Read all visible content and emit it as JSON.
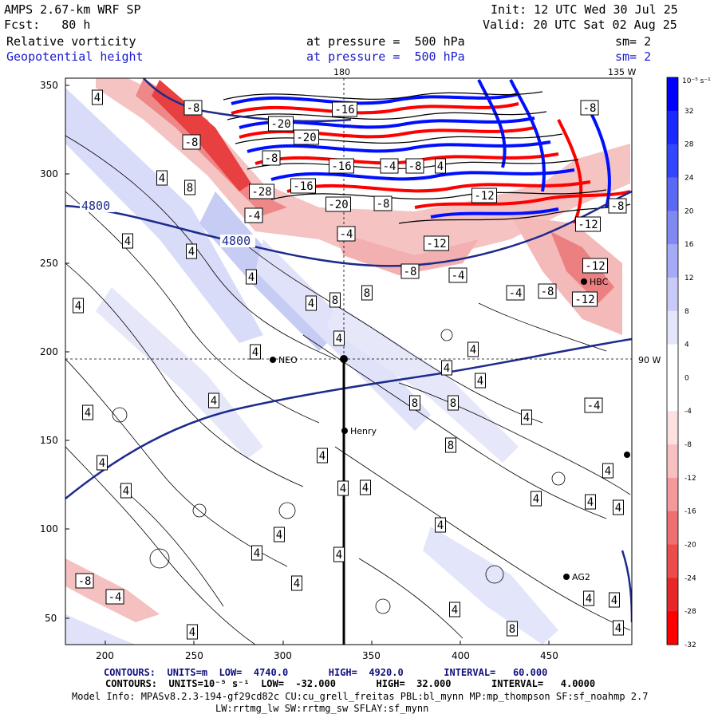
{
  "header": {
    "model": "AMPS 2.67-km WRF SP",
    "init": "Init: 12 UTC Wed 30 Jul 25",
    "fcst": "Fcst:   80 h",
    "valid": "Valid: 20 UTC Sat 02 Aug 25",
    "field1": "Relative vorticity",
    "field1_level": "at pressure =  500 hPa",
    "field1_sm": "sm= 2",
    "field2": "Geopotential height",
    "field2_level": "at pressure =  500 hPa",
    "field2_sm": "sm= 2"
  },
  "map": {
    "meridian_labels": {
      "top_180": "180",
      "top_135w": "135 W",
      "right_90w": "90 W"
    },
    "x_ticks": [
      "200",
      "250",
      "300",
      "350",
      "400",
      "450"
    ],
    "y_ticks": [
      "50",
      "100",
      "150",
      "200",
      "250",
      "300",
      "350"
    ],
    "stations": [
      {
        "name": "NEO"
      },
      {
        "name": "Henry"
      },
      {
        "name": "AG2"
      },
      {
        "name": "HBC"
      }
    ],
    "height_labels": [
      "4800",
      "4800"
    ],
    "vorticity_labels": [
      "4",
      "8",
      "-4",
      "-8",
      "-12",
      "-16",
      "-20",
      "-28"
    ],
    "colors": {
      "height_contour": "#1e2a8c",
      "pos": "#0000ff",
      "neg": "#ff0000"
    }
  },
  "colorbar": {
    "unit": "10⁻⁵ s⁻¹",
    "levels": [
      "32",
      "28",
      "24",
      "20",
      "16",
      "12",
      "8",
      "4",
      "0",
      "-4",
      "-8",
      "-12",
      "-16",
      "-20",
      "-24",
      "-28",
      "-32"
    ]
  },
  "footer": {
    "line1": "CONTOURS:  UNITS=m  LOW=  4740.0       HIGH=  4920.0       INTERVAL=   60.000",
    "line2": "CONTOURS:  UNITS=10⁻⁵ s⁻¹  LOW=  -32.000       HIGH=  32.000       INTERVAL=   4.0000",
    "line3": "Model Info: MPASv8.2.3-194-gf29cd82c CU:cu_grell_freitas PBL:bl_mynn MP:mp_thompson SF:sf_noahmp 2.7",
    "line4": "LW:rrtmg_lw SW:rrtmg_sw SFLAY:sf_mynn"
  }
}
